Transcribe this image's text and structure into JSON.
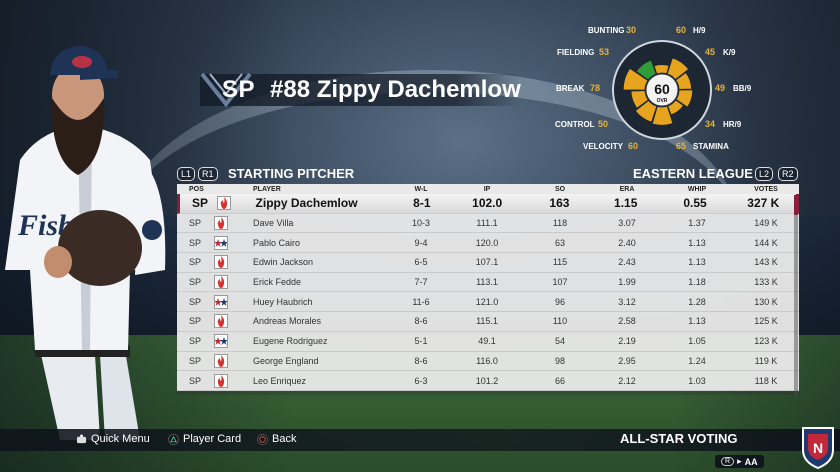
{
  "header": {
    "position": "SP",
    "player_name": "#88 Zippy Dachemlow"
  },
  "ratings": {
    "overall": "60",
    "overall_label": "OVR",
    "stats": [
      {
        "label": "BUNTING",
        "value": "30"
      },
      {
        "label": "H/9",
        "value": "60"
      },
      {
        "label": "FIELDING",
        "value": "53"
      },
      {
        "label": "K/9",
        "value": "45"
      },
      {
        "label": "BREAK",
        "value": "78"
      },
      {
        "label": "BB/9",
        "value": "49"
      },
      {
        "label": "CONTROL",
        "value": "50"
      },
      {
        "label": "HR/9",
        "value": "34"
      },
      {
        "label": "VELOCITY",
        "value": "60"
      },
      {
        "label": "STAMINA",
        "value": "65"
      }
    ],
    "colors": {
      "high": "#2f9d3a",
      "mid": "#e6a41f",
      "low": "#e6a41f",
      "ring": "#cfd6dd"
    }
  },
  "section": {
    "left_btn1": "L1",
    "left_btn2": "R1",
    "title": "STARTING PITCHER",
    "league": "EASTERN LEAGUE",
    "right_btn1": "L2",
    "right_btn2": "R2"
  },
  "table": {
    "columns": [
      "POS",
      "PLAYER",
      "W-L",
      "IP",
      "SO",
      "ERA",
      "WHIP",
      "VOTES"
    ],
    "rows": [
      {
        "pos": "SP",
        "team": "flame",
        "player": "Zippy Dachemlow",
        "wl": "8-1",
        "ip": "102.0",
        "so": "163",
        "era": "1.15",
        "whip": "0.55",
        "votes": "327 K"
      },
      {
        "pos": "SP",
        "team": "flame",
        "player": "Dave Villa",
        "wl": "10-3",
        "ip": "111.1",
        "so": "118",
        "era": "3.07",
        "whip": "1.37",
        "votes": "149 K"
      },
      {
        "pos": "SP",
        "team": "stars",
        "player": "Pablo Cairo",
        "wl": "9-4",
        "ip": "120.0",
        "so": "63",
        "era": "2.40",
        "whip": "1.13",
        "votes": "144 K"
      },
      {
        "pos": "SP",
        "team": "flame",
        "player": "Edwin Jackson",
        "wl": "6-5",
        "ip": "107.1",
        "so": "115",
        "era": "2.43",
        "whip": "1.13",
        "votes": "143 K"
      },
      {
        "pos": "SP",
        "team": "flame",
        "player": "Erick Fedde",
        "wl": "7-7",
        "ip": "113.1",
        "so": "107",
        "era": "1.99",
        "whip": "1.18",
        "votes": "133 K"
      },
      {
        "pos": "SP",
        "team": "stars",
        "player": "Huey Haubrich",
        "wl": "11-6",
        "ip": "121.0",
        "so": "96",
        "era": "3.12",
        "whip": "1.28",
        "votes": "130 K"
      },
      {
        "pos": "SP",
        "team": "flame",
        "player": "Andreas Morales",
        "wl": "8-6",
        "ip": "115.1",
        "so": "110",
        "era": "2.58",
        "whip": "1.13",
        "votes": "125 K"
      },
      {
        "pos": "SP",
        "team": "stars",
        "player": "Eugene Rodriguez",
        "wl": "5-1",
        "ip": "49.1",
        "so": "54",
        "era": "2.19",
        "whip": "1.05",
        "votes": "123 K"
      },
      {
        "pos": "SP",
        "team": "flame",
        "player": "George England",
        "wl": "8-6",
        "ip": "116.0",
        "so": "98",
        "era": "2.95",
        "whip": "1.24",
        "votes": "119 K"
      },
      {
        "pos": "SP",
        "team": "flame",
        "player": "Leo Enriquez",
        "wl": "6-3",
        "ip": "101.2",
        "so": "66",
        "era": "2.12",
        "whip": "1.03",
        "votes": "118 K"
      }
    ]
  },
  "footer": {
    "quick_menu": "Quick Menu",
    "player_card": "Player Card",
    "back": "Back",
    "screen_title": "ALL-STAR VOTING",
    "level_btn": "R",
    "level": "AA"
  }
}
